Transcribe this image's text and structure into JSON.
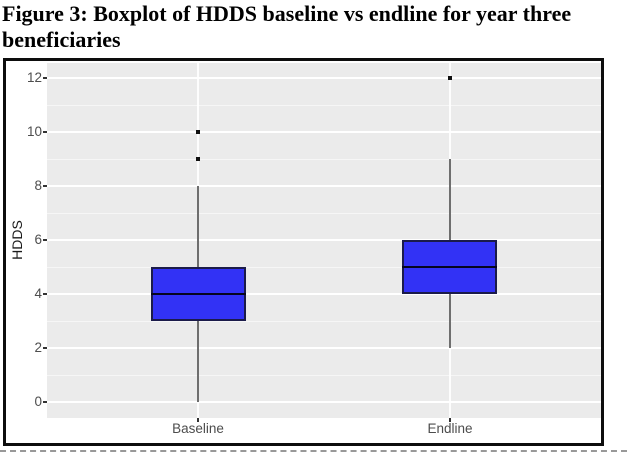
{
  "figure_title": "Figure 3: Boxplot of HDDS baseline vs endline for year three beneficiaries",
  "chart_data": {
    "type": "boxplot",
    "title": "",
    "xlabel": "",
    "ylabel": "HDDS",
    "categories": [
      "Baseline",
      "Endline"
    ],
    "series": [
      {
        "name": "Baseline",
        "whisker_low": 0,
        "q1": 3,
        "median": 4,
        "q3": 5,
        "whisker_high": 8,
        "outliers": [
          9,
          10
        ]
      },
      {
        "name": "Endline",
        "whisker_low": 2,
        "q1": 4,
        "median": 5,
        "q3": 6,
        "whisker_high": 9,
        "outliers": [
          12
        ]
      }
    ],
    "y_ticks": [
      0,
      2,
      4,
      6,
      8,
      10,
      12
    ],
    "y_minor_ticks": [
      1,
      3,
      5,
      7,
      9,
      11
    ],
    "ylim": [
      -0.6,
      12.6
    ],
    "grid": "major+minor",
    "legend": "none",
    "style": "ggplot2-grey-panel"
  },
  "colors": {
    "box_fill": "#3232f5",
    "box_border": "#1b1b4a",
    "median_line": "#05051e",
    "whisker": "#6e6e6e",
    "outlier": "#111111",
    "panel_bg": "#ebebeb",
    "grid_major": "#ffffff",
    "axis_text": "#4d4d4d",
    "axis_title": "#1a1a1a",
    "frame_border": "#0d0d0d",
    "title_text": "#000000"
  }
}
